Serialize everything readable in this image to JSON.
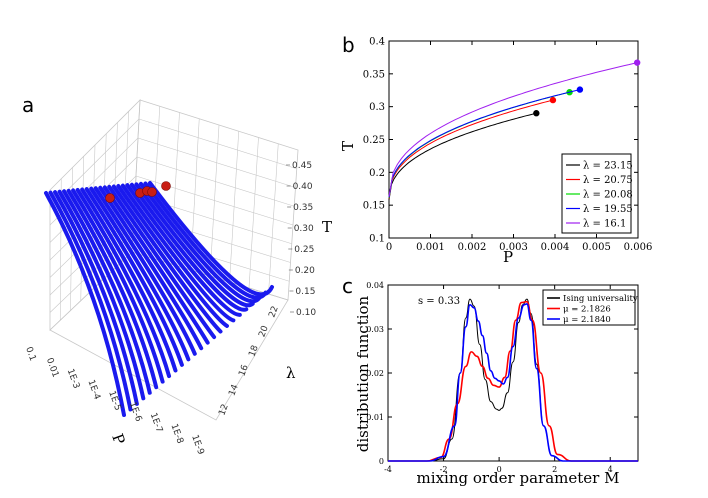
{
  "chart_data": [
    {
      "panel": "a",
      "type": "surface3d",
      "title": "",
      "xlabel": "P",
      "ylabel": "λ",
      "zlabel": "T",
      "x_ticks": [
        "0.1",
        "0.01",
        "1E-3",
        "1E-4",
        "1E-5",
        "1E-6",
        "1E-7",
        "1E-8",
        "1E-9"
      ],
      "y_ticks": [
        "12",
        "14",
        "16",
        "18",
        "20",
        "22"
      ],
      "z_ticks": [
        "0.10",
        "0.15",
        "0.20",
        "0.25",
        "0.30",
        "0.35",
        "0.40",
        "0.45"
      ],
      "n_curves": 24,
      "curve_color": "#1a1aee",
      "critical_point_color": "#c81e14"
    },
    {
      "panel": "b",
      "type": "line",
      "xlabel": "P",
      "ylabel": "T",
      "xlim": [
        0,
        0.006
      ],
      "ylim": [
        0.1,
        0.4
      ],
      "x_ticks": [
        "0",
        "0.001",
        "0.002",
        "0.003",
        "0.004",
        "0.005",
        "0.006"
      ],
      "y_ticks": [
        "0.1",
        "0.15",
        "0.2",
        "0.25",
        "0.3",
        "0.35",
        "0.4"
      ],
      "series": [
        {
          "name": "λ = 23.15",
          "color": "#000000",
          "T0": 0.158,
          "Pc": 0.00355,
          "Tc": 0.29
        },
        {
          "name": "λ = 20.75",
          "color": "#ff0000",
          "T0": 0.16,
          "Pc": 0.00395,
          "Tc": 0.31
        },
        {
          "name": "λ = 20.08",
          "color": "#00dd00",
          "T0": 0.161,
          "Pc": 0.00435,
          "Tc": 0.322
        },
        {
          "name": "λ = 19.55",
          "color": "#0000ff",
          "T0": 0.162,
          "Pc": 0.0046,
          "Tc": 0.326
        },
        {
          "name": "λ = 16.1",
          "color": "#a020f0",
          "T0": 0.163,
          "Pc": 0.00598,
          "Tc": 0.367
        }
      ]
    },
    {
      "panel": "c",
      "type": "line",
      "xlabel": "mixing order parameter M",
      "ylabel": "distribution function",
      "xlim": [
        -4,
        5
      ],
      "ylim": [
        0,
        0.04
      ],
      "x_ticks": [
        "-4",
        "-2",
        "0",
        "2",
        "4"
      ],
      "y_ticks": [
        "0",
        "0.01",
        "0.02",
        "0.03",
        "0.04"
      ],
      "annotation": "s = 0.33",
      "series": [
        {
          "name": "Ising universality",
          "color": "#000000",
          "x": [
            -4,
            -2.5,
            -2.0,
            -1.7,
            -1.4,
            -1.2,
            -1.05,
            -0.9,
            -0.7,
            -0.5,
            -0.3,
            -0.1,
            0,
            0.1,
            0.3,
            0.5,
            0.7,
            0.85,
            1.0,
            1.15,
            1.35,
            1.6,
            1.9,
            2.3,
            3.0,
            5
          ],
          "y": [
            0,
            0.0,
            0.0005,
            0.005,
            0.02,
            0.0325,
            0.0368,
            0.0352,
            0.0265,
            0.0185,
            0.0135,
            0.0118,
            0.0115,
            0.012,
            0.0155,
            0.0225,
            0.0315,
            0.0355,
            0.0368,
            0.0335,
            0.022,
            0.008,
            0.0012,
            0.0,
            0,
            0
          ]
        },
        {
          "name": "μ = 2.1826",
          "color": "#ff0000",
          "x": [
            -4,
            -2.6,
            -2.1,
            -1.8,
            -1.5,
            -1.2,
            -1.0,
            -0.8,
            -0.6,
            -0.4,
            -0.2,
            0,
            0.2,
            0.4,
            0.6,
            0.8,
            1.0,
            1.2,
            1.5,
            1.8,
            2.1,
            2.6,
            3.2,
            5
          ],
          "y": [
            0,
            0.0,
            0.0008,
            0.005,
            0.013,
            0.0215,
            0.0248,
            0.0238,
            0.0215,
            0.0188,
            0.0172,
            0.0168,
            0.019,
            0.025,
            0.032,
            0.036,
            0.0362,
            0.032,
            0.02,
            0.008,
            0.0015,
            0.0,
            0,
            0
          ]
        },
        {
          "name": "μ = 2.1840",
          "color": "#0000ff",
          "x": [
            -4,
            -2.5,
            -2.0,
            -1.6,
            -1.4,
            -1.2,
            -1.05,
            -0.9,
            -0.75,
            -0.6,
            -0.45,
            -0.3,
            -0.15,
            0,
            0.15,
            0.3,
            0.5,
            0.7,
            0.9,
            1.0,
            1.15,
            1.35,
            1.6,
            1.9,
            2.3,
            3.0,
            5
          ],
          "y": [
            0,
            0.0,
            0.001,
            0.008,
            0.02,
            0.0305,
            0.0355,
            0.0348,
            0.0318,
            0.0285,
            0.0245,
            0.0205,
            0.0188,
            0.0182,
            0.0175,
            0.019,
            0.026,
            0.0325,
            0.0355,
            0.0357,
            0.032,
            0.021,
            0.008,
            0.0012,
            0.0,
            0,
            0
          ]
        }
      ]
    }
  ]
}
